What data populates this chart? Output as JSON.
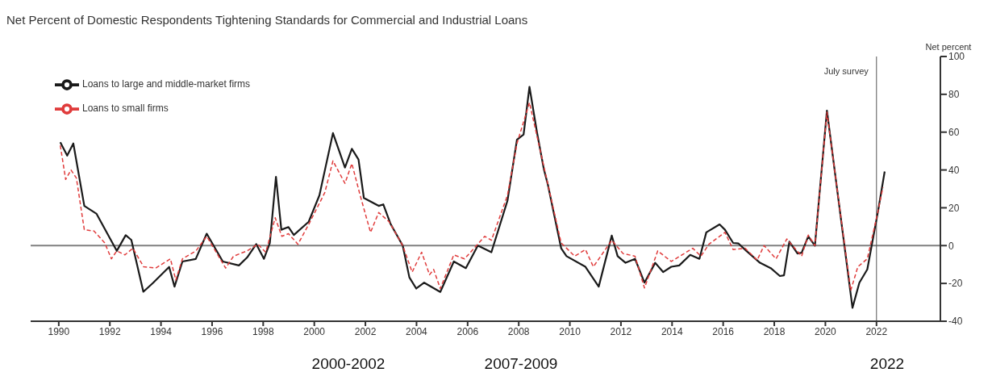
{
  "chart_data": {
    "type": "line",
    "title": "Net Percent of Domestic Respondents Tightening Standards for Commercial and Industrial Loans",
    "ylabel": "Net percent",
    "xlim": [
      1988.9,
      2024.5
    ],
    "xticks": [
      1990,
      1992,
      1994,
      1996,
      1998,
      2000,
      2002,
      2004,
      2006,
      2008,
      2010,
      2012,
      2014,
      2016,
      2018,
      2020,
      2022
    ],
    "ylim": [
      -40,
      100
    ],
    "yticks": [
      -40,
      -20,
      0,
      20,
      40,
      60,
      80,
      100
    ],
    "grid": false,
    "legend": "top left",
    "marker": "none",
    "series": [
      {
        "name": "Loans to large and middle-market firms",
        "color": "#1a1a1a",
        "line_style": "solid",
        "x": [
          1990.06,
          1990.33,
          1990.57,
          1991.0,
          1991.48,
          1992.27,
          1992.62,
          1992.84,
          1993.31,
          1993.69,
          1994.32,
          1994.53,
          1994.84,
          1995.36,
          1995.79,
          1996.42,
          1997.05,
          1997.37,
          1997.73,
          1998.03,
          1998.26,
          1998.5,
          1998.71,
          1998.99,
          1999.2,
          1999.78,
          2000.2,
          2000.73,
          2001.2,
          2001.47,
          2001.73,
          2001.94,
          2002.52,
          2002.7,
          2002.99,
          2003.46,
          2003.72,
          2003.99,
          2004.3,
          2004.93,
          2005.46,
          2005.93,
          2006.4,
          2006.93,
          2007.56,
          2007.93,
          2008.19,
          2008.42,
          2008.71,
          2008.98,
          2009.14,
          2009.66,
          2009.87,
          2010.61,
          2011.13,
          2011.64,
          2011.87,
          2012.18,
          2012.55,
          2012.92,
          2013.34,
          2013.65,
          2013.97,
          2014.28,
          2014.71,
          2015.07,
          2015.34,
          2015.86,
          2016.07,
          2016.39,
          2016.6,
          2016.91,
          2017.44,
          2017.86,
          2018.22,
          2018.38,
          2018.59,
          2018.91,
          2019.07,
          2019.33,
          2019.59,
          2020.06,
          2021.06,
          2021.33,
          2021.64,
          2022.06,
          2022.32
        ],
        "values": [
          54.6,
          47.6,
          54,
          21,
          16.8,
          -2.8,
          5.5,
          3,
          -24.4,
          -19.7,
          -11.3,
          -21.7,
          -8.4,
          -7.1,
          6.3,
          -8.4,
          -10.5,
          -6.3,
          0.8,
          -7,
          1.4,
          36.4,
          8.4,
          9.8,
          5.6,
          12.6,
          26.6,
          59.5,
          41.3,
          51.2,
          45.5,
          25.2,
          21,
          21.8,
          11.3,
          0,
          -16.8,
          -22.7,
          -19.6,
          -24.5,
          -8.4,
          -11.9,
          0,
          -3.5,
          23.8,
          56,
          58.8,
          84,
          60.2,
          40.6,
          32.2,
          -1.4,
          -5.6,
          -11.2,
          -21.7,
          5.3,
          -5.6,
          -9.1,
          -7,
          -19.6,
          -9.1,
          -14,
          -11.2,
          -10.5,
          -4.9,
          -7,
          7,
          11.2,
          8.4,
          1.4,
          1.1,
          -2.8,
          -9.1,
          -11.9,
          -16.1,
          -15.7,
          2.1,
          -4.2,
          -3.8,
          4.9,
          0,
          71.4,
          -32.9,
          -19.6,
          -12.6,
          18.2,
          39.2
        ]
      },
      {
        "name": "Loans to small firms",
        "color": "#e03c3c",
        "line_style": "dashed",
        "x": [
          1990.06,
          1990.27,
          1990.48,
          1990.69,
          1991.0,
          1991.38,
          1991.8,
          1992.06,
          1992.27,
          1992.59,
          1992.9,
          1993.32,
          1993.79,
          1994.37,
          1994.58,
          1994.84,
          1995.37,
          1995.79,
          1996.53,
          1996.84,
          1997.37,
          1997.79,
          1998.1,
          1998.47,
          1998.73,
          1998.99,
          1999.36,
          1999.78,
          2000.41,
          2000.73,
          2001.2,
          2001.47,
          2001.78,
          2002.2,
          2002.52,
          2002.93,
          2003.46,
          2003.83,
          2004.2,
          2004.51,
          2004.67,
          2004.93,
          2005.46,
          2005.88,
          2006.67,
          2006.93,
          2007.56,
          2007.93,
          2008.42,
          2008.98,
          2009.66,
          2010.19,
          2010.61,
          2010.92,
          2011.64,
          2012.08,
          2012.55,
          2012.92,
          2013.44,
          2013.97,
          2014.81,
          2015.13,
          2015.44,
          2016.07,
          2016.39,
          2016.86,
          2017.33,
          2017.6,
          2018.07,
          2018.49,
          2019.07,
          2019.33,
          2019.59,
          2020.06,
          2020.99,
          2021.27,
          2021.64,
          2022.06,
          2022.25
        ],
        "values": [
          53,
          35,
          40,
          35.7,
          8.4,
          7.7,
          1.4,
          -7,
          -2.8,
          -4.9,
          -1.4,
          -11.2,
          -11.9,
          -7,
          -18.2,
          -7,
          -2.8,
          4.9,
          -11.9,
          -5.6,
          -2.8,
          0.7,
          -3.5,
          14.7,
          4.9,
          6.3,
          0.7,
          11.2,
          28,
          44.8,
          32.9,
          43.4,
          27.3,
          7,
          17.5,
          12.6,
          0,
          -14,
          -3.5,
          -15.4,
          -12.6,
          -22.7,
          -4.9,
          -7,
          4.9,
          2.8,
          26.6,
          54,
          75.6,
          42,
          1.4,
          -5.6,
          -2.1,
          -11.2,
          2.8,
          -4.2,
          -5.6,
          -22.4,
          -2.8,
          -8.4,
          -1.4,
          -5.6,
          0.7,
          7,
          -2.1,
          -1.4,
          -7.7,
          0,
          -7,
          3.5,
          -5.6,
          5.6,
          0,
          70.6,
          -23.8,
          -11.2,
          -7,
          18.2,
          30.8
        ]
      }
    ],
    "ref_lines": [
      {
        "axis": "y",
        "value": 0,
        "color": "#808080"
      },
      {
        "axis": "x",
        "value": 2022,
        "label": "July survey",
        "color": "#555555"
      }
    ],
    "annotations": [
      "2000-2002",
      "2007-2009",
      "2022"
    ]
  }
}
